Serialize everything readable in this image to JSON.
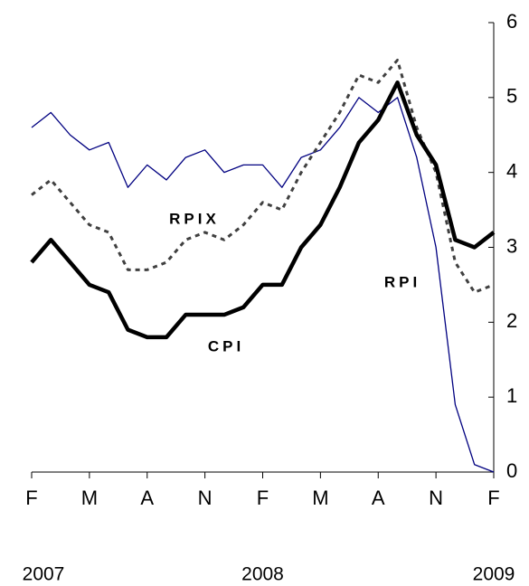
{
  "chart_data": {
    "type": "line",
    "categories": [
      "F",
      null,
      null,
      "M",
      null,
      null,
      "A",
      null,
      null,
      "N",
      null,
      null,
      "F",
      null,
      null,
      "M",
      null,
      null,
      "A",
      null,
      null,
      "N",
      null,
      null,
      "F"
    ],
    "year_labels": [
      {
        "label": "2007",
        "category": 0
      },
      {
        "label": "2008",
        "category": 12
      },
      {
        "label": "2009",
        "category": 24
      }
    ],
    "series": [
      {
        "name": "RPI",
        "color": "#000080",
        "values": [
          4.6,
          4.8,
          4.5,
          4.3,
          4.4,
          3.8,
          4.1,
          3.9,
          4.2,
          4.3,
          4.0,
          4.1,
          4.1,
          3.8,
          4.2,
          4.3,
          4.6,
          5.0,
          4.8,
          5.0,
          4.2,
          3.0,
          0.9,
          0.1,
          0.0
        ]
      },
      {
        "name": "RPIX",
        "color": "#404040",
        "values": [
          3.7,
          3.9,
          3.6,
          3.3,
          3.2,
          2.7,
          2.7,
          2.8,
          3.1,
          3.2,
          3.1,
          3.3,
          3.6,
          3.5,
          4.0,
          4.4,
          4.8,
          5.3,
          5.2,
          5.5,
          4.6,
          4.0,
          2.8,
          2.4,
          2.5
        ]
      },
      {
        "name": "CPI",
        "color": "#000000",
        "values": [
          2.8,
          3.1,
          2.8,
          2.5,
          2.4,
          1.9,
          1.8,
          1.8,
          2.1,
          2.1,
          2.1,
          2.2,
          2.5,
          2.5,
          3.0,
          3.3,
          3.8,
          4.4,
          4.7,
          5.2,
          4.5,
          4.1,
          3.1,
          3.0,
          3.2
        ]
      }
    ],
    "ylim": [
      0,
      6
    ],
    "yticks": [
      0,
      1,
      2,
      3,
      4,
      5,
      6
    ],
    "y_axis_side": "right"
  }
}
